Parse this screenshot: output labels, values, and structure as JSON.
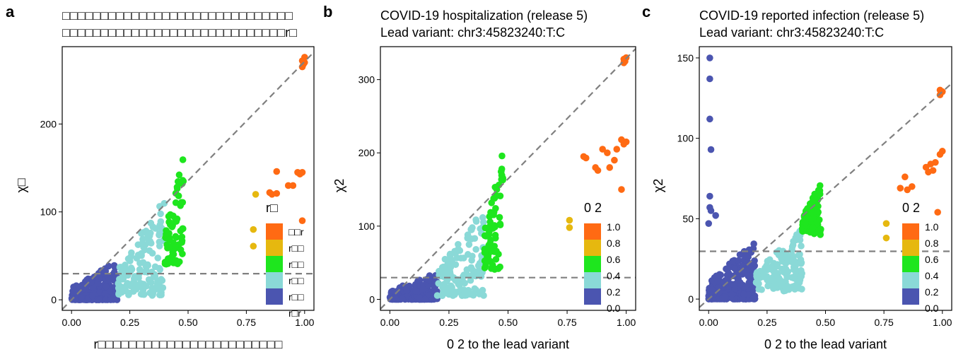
{
  "panels": [
    {
      "label": "a",
      "title_line1": "□□□□□□□□□□□□□□□□□□□□□□□□□□□□□□",
      "title_line2": "□□□□□□□□□□□□□□□□□□□□□□□□□□□□□r□",
      "ylabel": "χ□",
      "xlabel": "r□□□□□□□□□□□□□□□□□□□□□□□□",
      "legend_title": "r□",
      "legend_labels": [
        "□□r",
        "r□□",
        "r□□",
        "r□□",
        "r□□",
        "r□r"
      ]
    },
    {
      "label": "b",
      "title_line1": "COVID-19 hospitalization (release 5)",
      "title_line2": "Lead variant: chr3:45823240:T:C",
      "ylabel": "χ2",
      "xlabel": "0 2 to the lead variant",
      "legend_title": "0 2",
      "legend_labels": [
        "1.0",
        "0.8",
        "0.6",
        "0.4",
        "0.2",
        "0.0"
      ]
    },
    {
      "label": "c",
      "title_line1": "COVID-19 reported infection (release 5)",
      "title_line2": "Lead variant: chr3:45823240:T:C",
      "ylabel": "χ2",
      "xlabel": "0 2 to the lead variant",
      "legend_title": "0 2",
      "legend_labels": [
        "1.0",
        "0.8",
        "0.6",
        "0.4",
        "0.2",
        "0.0"
      ]
    }
  ],
  "colors": {
    "orange": "#ff6a13",
    "gold": "#e6b80f",
    "green": "#1ee61e",
    "cyan": "#8ad9d7",
    "blue": "#4b55b0",
    "dashed": "#808080"
  },
  "chart_data": [
    {
      "type": "scatter",
      "panel": "a",
      "xlim": [
        -0.04,
        1.04
      ],
      "ylim": [
        -12,
        288
      ],
      "xticks": [
        0.0,
        0.25,
        0.5,
        0.75,
        1.0
      ],
      "xtick_labels": [
        "0.00",
        "0.25",
        "0.50",
        "0.75",
        "1.00"
      ],
      "yticks": [
        0,
        100,
        200
      ],
      "ytick_labels": [
        "0",
        "100",
        "200"
      ],
      "threshold_y": 29.7,
      "diagonal_slope": 271,
      "groups": [
        {
          "color": "blue",
          "x_range": [
            0.0,
            0.2
          ],
          "y_max": 45
        },
        {
          "color": "cyan",
          "x_range": [
            0.2,
            0.4
          ],
          "y_max": 115
        },
        {
          "color": "green",
          "x_range": [
            0.4,
            0.48
          ],
          "y_max": 168
        }
      ],
      "points": [
        [
          0.99,
          272
        ],
        [
          0.995,
          268
        ],
        [
          1.0,
          276
        ],
        [
          0.99,
          265
        ],
        [
          1.0,
          270
        ],
        [
          0.97,
          145
        ],
        [
          0.98,
          143
        ],
        [
          0.99,
          145
        ],
        [
          0.88,
          146
        ],
        [
          0.93,
          130
        ],
        [
          0.95,
          130
        ],
        [
          0.85,
          122
        ],
        [
          0.86,
          120
        ],
        [
          0.88,
          121
        ],
        [
          0.99,
          90
        ],
        [
          0.79,
          120
        ],
        [
          0.78,
          80
        ],
        [
          0.78,
          61
        ]
      ],
      "point_colors": [
        "orange",
        "orange",
        "orange",
        "orange",
        "orange",
        "orange",
        "orange",
        "orange",
        "orange",
        "orange",
        "orange",
        "orange",
        "orange",
        "orange",
        "orange",
        "gold",
        "gold",
        "gold"
      ]
    },
    {
      "type": "scatter",
      "panel": "b",
      "xlim": [
        -0.04,
        1.04
      ],
      "ylim": [
        -15,
        345
      ],
      "xticks": [
        0.0,
        0.25,
        0.5,
        0.75,
        1.0
      ],
      "xtick_labels": [
        "0.00",
        "0.25",
        "0.50",
        "0.75",
        "1.00"
      ],
      "yticks": [
        0,
        100,
        200,
        300
      ],
      "ytick_labels": [
        "0",
        "100",
        "200",
        "300"
      ],
      "threshold_y": 29.7,
      "diagonal_slope": 329,
      "groups": [
        {
          "color": "blue",
          "x_range": [
            0.0,
            0.2
          ],
          "y_max": 38
        },
        {
          "color": "cyan",
          "x_range": [
            0.2,
            0.4
          ],
          "y_max": 125
        },
        {
          "color": "green",
          "x_range": [
            0.4,
            0.48
          ],
          "y_max": 215
        }
      ],
      "points": [
        [
          0.99,
          328
        ],
        [
          1.0,
          330
        ],
        [
          0.995,
          325
        ],
        [
          0.99,
          323
        ],
        [
          0.98,
          218
        ],
        [
          1.0,
          215
        ],
        [
          0.99,
          212
        ],
        [
          0.96,
          205
        ],
        [
          0.9,
          205
        ],
        [
          0.92,
          200
        ],
        [
          0.82,
          195
        ],
        [
          0.83,
          193
        ],
        [
          0.95,
          190
        ],
        [
          0.93,
          180
        ],
        [
          0.87,
          180
        ],
        [
          0.88,
          176
        ],
        [
          0.98,
          150
        ],
        [
          0.76,
          108
        ],
        [
          0.76,
          98
        ]
      ],
      "point_colors": [
        "orange",
        "orange",
        "orange",
        "orange",
        "orange",
        "orange",
        "orange",
        "orange",
        "orange",
        "orange",
        "orange",
        "orange",
        "orange",
        "orange",
        "orange",
        "orange",
        "orange",
        "gold",
        "gold"
      ]
    },
    {
      "type": "scatter",
      "panel": "c",
      "xlim": [
        -0.04,
        1.04
      ],
      "ylim": [
        -7,
        157
      ],
      "xticks": [
        0.0,
        0.25,
        0.5,
        0.75,
        1.0
      ],
      "xtick_labels": [
        "0.00",
        "0.25",
        "0.50",
        "0.75",
        "1.00"
      ],
      "yticks": [
        0,
        50,
        100,
        150
      ],
      "ytick_labels": [
        "0",
        "50",
        "100",
        "150"
      ],
      "threshold_y": 29.7,
      "diagonal_slope": 129,
      "groups": [
        {
          "color": "blue",
          "x_range": [
            0.0,
            0.2
          ],
          "y_max": 36
        },
        {
          "color": "cyan",
          "x_range": [
            0.2,
            0.4
          ],
          "y_max": 45
        },
        {
          "color": "green",
          "x_range": [
            0.4,
            0.48
          ],
          "y_max": 74
        }
      ],
      "points": [
        [
          0.005,
          150
        ],
        [
          0.005,
          137
        ],
        [
          0.005,
          112
        ],
        [
          0.01,
          93
        ],
        [
          0.005,
          64
        ],
        [
          0.005,
          57
        ],
        [
          0.01,
          55
        ],
        [
          0.03,
          52
        ],
        [
          0.0,
          47
        ],
        [
          0.99,
          130
        ],
        [
          1.0,
          129
        ],
        [
          0.99,
          127
        ],
        [
          1.0,
          92
        ],
        [
          0.99,
          90
        ],
        [
          0.97,
          85
        ],
        [
          0.95,
          84
        ],
        [
          0.96,
          80
        ],
        [
          0.93,
          82
        ],
        [
          0.94,
          79
        ],
        [
          0.84,
          76
        ],
        [
          0.87,
          70
        ],
        [
          0.82,
          69
        ],
        [
          0.85,
          68
        ],
        [
          0.98,
          54
        ],
        [
          0.76,
          47
        ],
        [
          0.76,
          38
        ]
      ],
      "point_colors": [
        "blue",
        "blue",
        "blue",
        "blue",
        "blue",
        "blue",
        "blue",
        "blue",
        "blue",
        "orange",
        "orange",
        "orange",
        "orange",
        "orange",
        "orange",
        "orange",
        "orange",
        "orange",
        "orange",
        "orange",
        "orange",
        "orange",
        "orange",
        "orange",
        "gold",
        "gold"
      ]
    }
  ]
}
